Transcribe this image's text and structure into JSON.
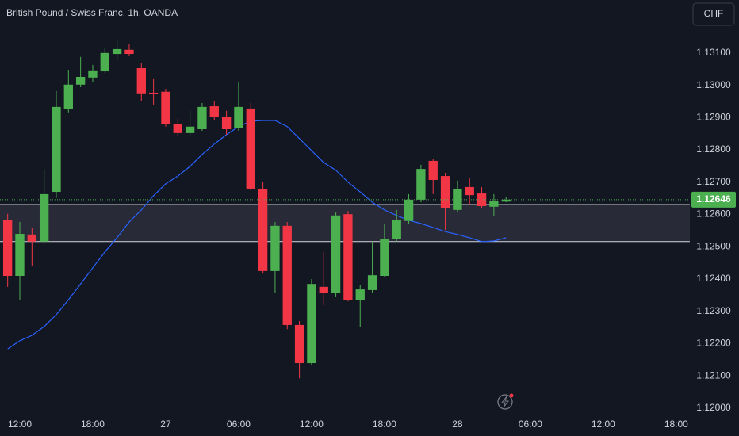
{
  "chart_data": {
    "type": "candlestick",
    "title": "British Pound / Swiss Franc, 1h, OANDA",
    "currency": "CHF",
    "x": [
      -1,
      0,
      1,
      2,
      3,
      4,
      5,
      6,
      7,
      8,
      9,
      10,
      11,
      12,
      13,
      14,
      15,
      16,
      17,
      18,
      19,
      20,
      21,
      22,
      23,
      24,
      25,
      26,
      27,
      28,
      29,
      30,
      31,
      32,
      33,
      34,
      35,
      36,
      37,
      38,
      39,
      40
    ],
    "open": [
      1.12582,
      1.1241,
      1.12538,
      1.12516,
      1.1267,
      1.12926,
      1.13002,
      1.13024,
      1.13043,
      1.13097,
      1.1311,
      1.13053,
      1.12977,
      1.1298,
      1.12881,
      1.12852,
      1.12864,
      1.12935,
      1.12903,
      1.12867,
      1.12928,
      1.1268,
      1.12425,
      1.12565,
      1.12258,
      1.1214,
      1.12376,
      1.12356,
      1.12601,
      1.12336,
      1.12366,
      1.1241,
      1.12523,
      1.1258,
      1.12646,
      1.12766,
      1.12719,
      1.12614,
      1.12685,
      1.12665,
      1.12624,
      1.1264
    ],
    "high": [
      1.12602,
      1.12577,
      1.12557,
      1.12741,
      1.12982,
      1.13048,
      1.13088,
      1.13063,
      1.13117,
      1.13137,
      1.13129,
      1.13068,
      1.13019,
      1.12989,
      1.12896,
      1.12921,
      1.12945,
      1.1295,
      1.12921,
      1.13009,
      1.12945,
      1.127,
      1.12577,
      1.12577,
      1.1227,
      1.124,
      1.12484,
      1.12606,
      1.12611,
      1.12381,
      1.12516,
      1.1257,
      1.12614,
      1.12663,
      1.12754,
      1.12773,
      1.12729,
      1.12705,
      1.12712,
      1.12685,
      1.12663,
      1.12653
    ],
    "low": [
      1.12376,
      1.12336,
      1.12442,
      1.12508,
      1.12651,
      1.12916,
      1.12994,
      1.13011,
      1.13038,
      1.13078,
      1.1309,
      1.1295,
      1.1294,
      1.12872,
      1.12842,
      1.12842,
      1.12859,
      1.12891,
      1.12847,
      1.12859,
      1.12675,
      1.12417,
      1.12356,
      1.12245,
      1.12093,
      1.12135,
      1.12319,
      1.12344,
      1.12331,
      1.12253,
      1.12356,
      1.12405,
      1.12516,
      1.12572,
      1.12638,
      1.12663,
      1.12552,
      1.12606,
      1.12631,
      1.12621,
      1.12594,
      1.12638
    ],
    "close": [
      1.1241,
      1.1254,
      1.12516,
      1.12663,
      1.12933,
      1.13002,
      1.13026,
      1.13046,
      1.131,
      1.13112,
      1.13097,
      1.12975,
      1.12975,
      1.12879,
      1.12852,
      1.12872,
      1.12933,
      1.12901,
      1.12864,
      1.12933,
      1.1268,
      1.12425,
      1.12565,
      1.12258,
      1.1214,
      1.12385,
      1.12356,
      1.12597,
      1.12336,
      1.12368,
      1.12412,
      1.12523,
      1.12582,
      1.12646,
      1.12741,
      1.12707,
      1.12619,
      1.1268,
      1.1266,
      1.12626,
      1.12643,
      1.12646
    ],
    "up_color": "#4caf50",
    "down_color": "#f23645",
    "ma": {
      "color": "#2962ff",
      "values": [
        1.12184,
        1.12209,
        1.12226,
        1.12253,
        1.1229,
        1.12336,
        1.12385,
        1.12435,
        1.12484,
        1.12528,
        1.12577,
        1.12614,
        1.12658,
        1.12695,
        1.12719,
        1.12749,
        1.12786,
        1.12818,
        1.12847,
        1.12872,
        1.12889,
        1.12891,
        1.12891,
        1.12872,
        1.12835,
        1.12798,
        1.12761,
        1.12737,
        1.127,
        1.1267,
        1.12638,
        1.12614,
        1.12597,
        1.12582,
        1.12572,
        1.1256,
        1.12547,
        1.12538,
        1.12528,
        1.12516,
        1.12518,
        1.12528
      ]
    },
    "zone": [
      1.12516,
      1.12631
    ],
    "zone_color": "#3a3d48",
    "last_price": 1.12646,
    "xlim": [
      -1.63,
      55.12
    ],
    "ylim": [
      1.11983,
      1.13264
    ],
    "xticks": [
      {
        "value": 0,
        "label": "12:00"
      },
      {
        "value": 6,
        "label": "18:00"
      },
      {
        "value": 12,
        "label": "27"
      },
      {
        "value": 18,
        "label": "06:00"
      },
      {
        "value": 24,
        "label": "12:00"
      },
      {
        "value": 30,
        "label": "18:00"
      },
      {
        "value": 36,
        "label": "28"
      },
      {
        "value": 42,
        "label": "06:00"
      },
      {
        "value": 48,
        "label": "12:00"
      },
      {
        "value": 54,
        "label": "18:00"
      }
    ],
    "yticks": [
      {
        "value": 1.12,
        "label": "1.12000"
      },
      {
        "value": 1.121,
        "label": "1.12100"
      },
      {
        "value": 1.122,
        "label": "1.12200"
      },
      {
        "value": 1.123,
        "label": "1.12300"
      },
      {
        "value": 1.124,
        "label": "1.12400"
      },
      {
        "value": 1.125,
        "label": "1.12500"
      },
      {
        "value": 1.126,
        "label": "1.12600"
      },
      {
        "value": 1.127,
        "label": "1.12700"
      },
      {
        "value": 1.128,
        "label": "1.12800"
      },
      {
        "value": 1.129,
        "label": "1.12900"
      },
      {
        "value": 1.13,
        "label": "1.13000"
      },
      {
        "value": 1.131,
        "label": "1.13100"
      }
    ],
    "grid": false
  }
}
